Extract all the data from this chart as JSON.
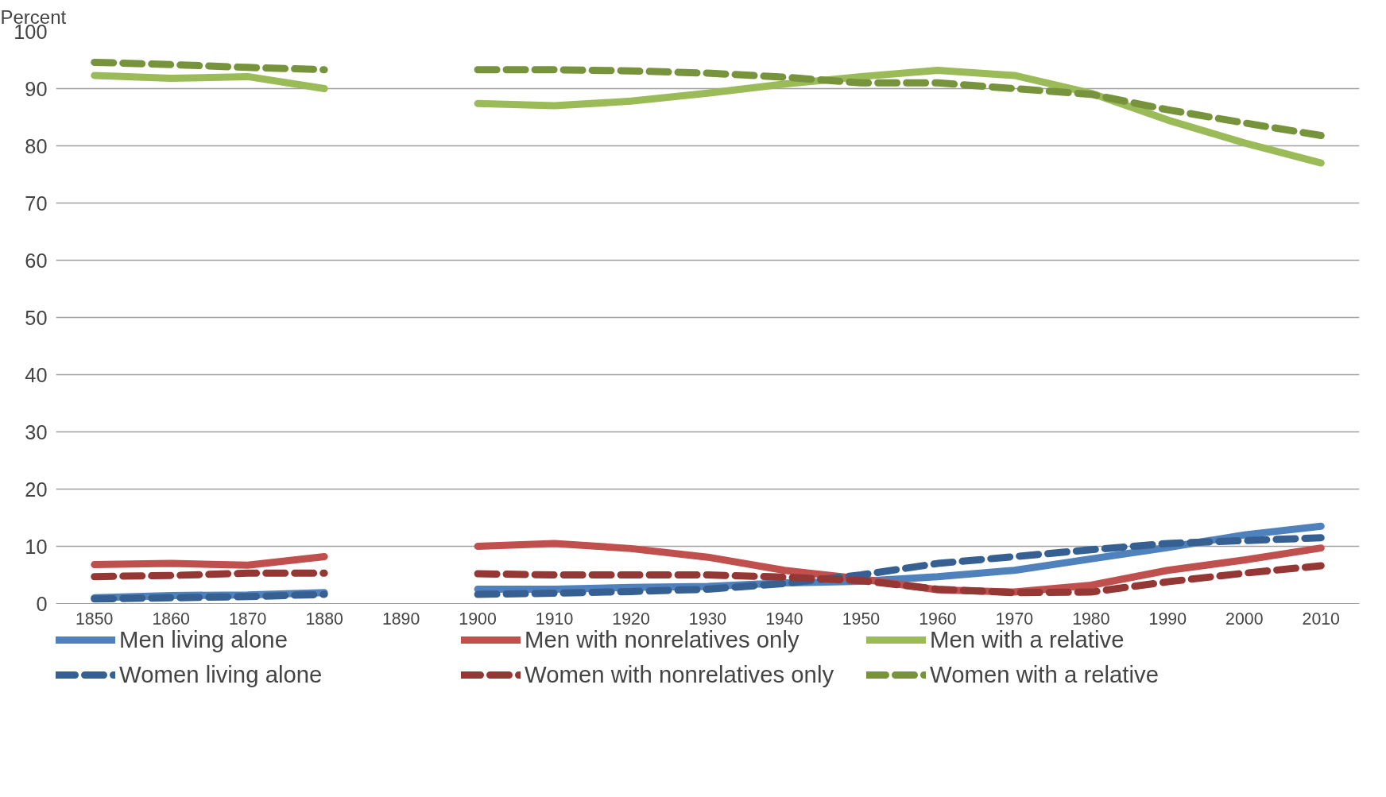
{
  "chart_data": {
    "type": "line",
    "ylabel": "Percent",
    "categories": [
      "1850",
      "1860",
      "1870",
      "1880",
      "1890",
      "1900",
      "1910",
      "1920",
      "1930",
      "1940",
      "1950",
      "1960",
      "1970",
      "1980",
      "1990",
      "2000",
      "2010"
    ],
    "ylim": [
      0,
      100
    ],
    "yticks": [
      0,
      10,
      20,
      30,
      40,
      50,
      60,
      70,
      80,
      90,
      100
    ],
    "grid": "y",
    "legend": "bottom",
    "marker": "none",
    "series": [
      {
        "name": "Men living alone",
        "color": "#4f81bd",
        "line_style": "solid",
        "values": [
          1.0,
          1.4,
          1.5,
          1.9,
          null,
          2.5,
          2.5,
          2.8,
          3.0,
          3.6,
          3.9,
          4.7,
          5.8,
          7.8,
          9.8,
          12.0,
          13.5
        ]
      },
      {
        "name": "Men with nonrelatives only",
        "color": "#c0504d",
        "line_style": "solid",
        "values": [
          6.8,
          7.0,
          6.7,
          8.2,
          null,
          10.0,
          10.5,
          9.6,
          8.1,
          5.8,
          4.3,
          2.4,
          2.0,
          3.2,
          5.8,
          7.6,
          9.7
        ]
      },
      {
        "name": "Men with a relative",
        "color": "#9bbb59",
        "line_style": "solid",
        "values": [
          92.3,
          91.8,
          92.1,
          90.0,
          null,
          87.4,
          87.0,
          87.8,
          89.2,
          90.8,
          92.1,
          93.2,
          92.3,
          89.2,
          84.5,
          80.5,
          77.0
        ]
      },
      {
        "name": "Women living alone",
        "color": "#376092",
        "line_style": "dashed",
        "values": [
          0.8,
          1.0,
          1.2,
          1.6,
          null,
          1.6,
          1.8,
          2.1,
          2.5,
          3.5,
          5.0,
          7.0,
          8.2,
          9.4,
          10.5,
          11.0,
          11.5
        ]
      },
      {
        "name": "Women with nonrelatives only",
        "color": "#953735",
        "line_style": "dashed",
        "values": [
          4.7,
          4.9,
          5.3,
          5.3,
          null,
          5.2,
          5.0,
          5.0,
          5.0,
          4.6,
          4.0,
          2.5,
          1.9,
          2.0,
          3.8,
          5.3,
          6.6
        ]
      },
      {
        "name": "Women with a relative",
        "color": "#77933c",
        "line_style": "dashed",
        "values": [
          94.6,
          94.2,
          93.7,
          93.3,
          null,
          93.3,
          93.3,
          93.1,
          92.7,
          92.0,
          91.0,
          91.0,
          90.0,
          89.0,
          86.3,
          84.0,
          81.8
        ]
      }
    ]
  }
}
